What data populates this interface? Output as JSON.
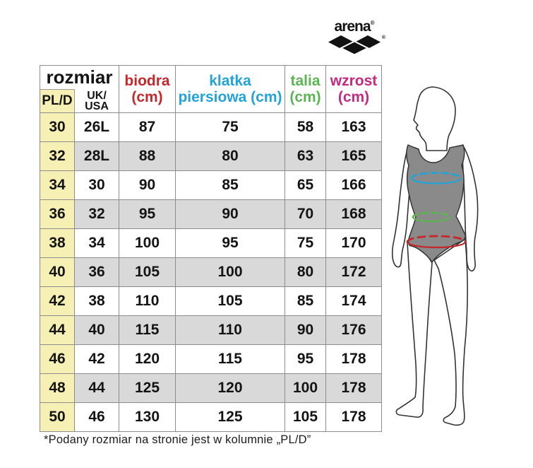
{
  "logo": {
    "brand": "arena",
    "registered": "®"
  },
  "table": {
    "header": {
      "rozmiar": "rozmiar",
      "pl_d": "PL/D",
      "uk_usa": [
        "UK/",
        "USA"
      ],
      "biodra": [
        "biodra",
        "(cm)"
      ],
      "klatka": [
        "klatka",
        "piersiowa (cm)"
      ],
      "talia": [
        "talia",
        "(cm)"
      ],
      "wzrost": [
        "wzrost",
        "(cm)"
      ]
    },
    "rows": [
      {
        "pl_d": "30",
        "uk_usa": "26L",
        "biodra": "87",
        "klatka": "75",
        "talia": "58",
        "wzrost": "163"
      },
      {
        "pl_d": "32",
        "uk_usa": "28L",
        "biodra": "88",
        "klatka": "80",
        "talia": "63",
        "wzrost": "165"
      },
      {
        "pl_d": "34",
        "uk_usa": "30",
        "biodra": "90",
        "klatka": "85",
        "talia": "65",
        "wzrost": "166"
      },
      {
        "pl_d": "36",
        "uk_usa": "32",
        "biodra": "95",
        "klatka": "90",
        "talia": "70",
        "wzrost": "168"
      },
      {
        "pl_d": "38",
        "uk_usa": "34",
        "biodra": "100",
        "klatka": "95",
        "talia": "75",
        "wzrost": "170"
      },
      {
        "pl_d": "40",
        "uk_usa": "36",
        "biodra": "105",
        "klatka": "100",
        "talia": "80",
        "wzrost": "172"
      },
      {
        "pl_d": "42",
        "uk_usa": "38",
        "biodra": "110",
        "klatka": "105",
        "talia": "85",
        "wzrost": "174"
      },
      {
        "pl_d": "44",
        "uk_usa": "40",
        "biodra": "115",
        "klatka": "110",
        "talia": "90",
        "wzrost": "176"
      },
      {
        "pl_d": "46",
        "uk_usa": "42",
        "biodra": "120",
        "klatka": "115",
        "talia": "95",
        "wzrost": "178"
      },
      {
        "pl_d": "48",
        "uk_usa": "44",
        "biodra": "125",
        "klatka": "120",
        "talia": "100",
        "wzrost": "178"
      },
      {
        "pl_d": "50",
        "uk_usa": "46",
        "biodra": "130",
        "klatka": "125",
        "talia": "105",
        "wzrost": "178"
      }
    ]
  },
  "footnote": "*Podany rozmiar na stronie jest w kolumnie „PL/D”",
  "colors": {
    "biodra": "#c5282b",
    "klatka": "#24a3d8",
    "talia": "#5cb453",
    "wzrost": "#c52a80",
    "pl_d_bg": "#f7f0b4",
    "row_alt_bg": "#d9d9d9",
    "border": "#8d8d8d",
    "suit": "#8a8a8a",
    "outline": "#333333",
    "chest_line": "#24a3d8",
    "waist_line": "#5cb453",
    "hip_line": "#c5282b"
  }
}
